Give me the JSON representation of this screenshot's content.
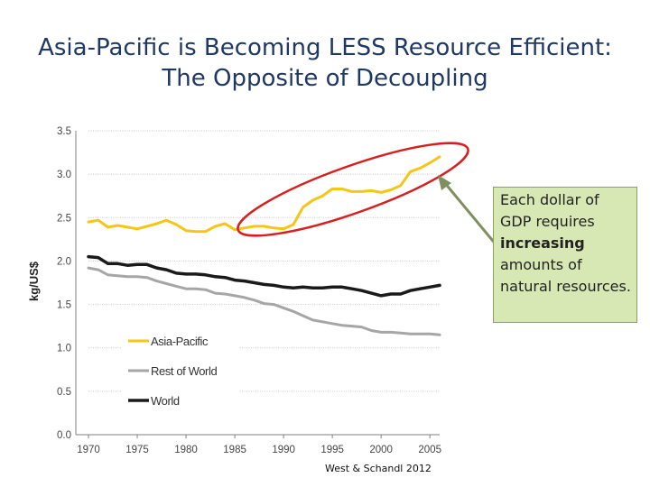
{
  "slide": {
    "title_line1": "Asia-Pacific is Becoming LESS Resource Efficient:",
    "title_line2": "The Opposite of Decoupling"
  },
  "callout": {
    "line1": "Each dollar of",
    "line2": "GDP requires",
    "line3": "increasing",
    "line4": "amounts of",
    "line5": "natural resources."
  },
  "source": "West & Schandl 2012",
  "colors": {
    "asia_pacific": "#f5c518",
    "rest_of_world": "#a6a6a6",
    "world": "#1a1a1a",
    "highlight_ellipse": "#d81e1e",
    "arrow": "#7f8f60",
    "callout_fill": "#d7e8b4"
  },
  "chart_data": {
    "type": "line",
    "title": "",
    "xlabel": "",
    "ylabel": "kg/US$",
    "xlim": [
      1970,
      2006
    ],
    "ylim": [
      0,
      3.5
    ],
    "grid": true,
    "legend_position": "bottom-left",
    "x_ticks": [
      "1970",
      "1975",
      "1980",
      "1985",
      "1990",
      "1995",
      "2000",
      "2005"
    ],
    "y_ticks": [
      "0.0",
      "0.5",
      "1.0",
      "1.5",
      "2.0",
      "2.5",
      "3.0",
      "3.5"
    ],
    "x": [
      1970,
      1971,
      1972,
      1973,
      1974,
      1975,
      1976,
      1977,
      1978,
      1979,
      1980,
      1981,
      1982,
      1983,
      1984,
      1985,
      1986,
      1987,
      1988,
      1989,
      1990,
      1991,
      1992,
      1993,
      1994,
      1995,
      1996,
      1997,
      1998,
      1999,
      2000,
      2001,
      2002,
      2003,
      2004,
      2005,
      2006
    ],
    "series": [
      {
        "name": "Asia-Pacific",
        "color_key": "asia_pacific",
        "values": [
          2.45,
          2.47,
          2.39,
          2.41,
          2.39,
          2.37,
          2.4,
          2.43,
          2.47,
          2.42,
          2.35,
          2.34,
          2.34,
          2.4,
          2.43,
          2.36,
          2.38,
          2.4,
          2.4,
          2.38,
          2.37,
          2.42,
          2.62,
          2.7,
          2.75,
          2.83,
          2.83,
          2.8,
          2.8,
          2.81,
          2.79,
          2.82,
          2.87,
          3.03,
          3.07,
          3.13,
          3.2
        ]
      },
      {
        "name": "Rest of World",
        "color_key": "rest_of_world",
        "values": [
          1.92,
          1.9,
          1.84,
          1.83,
          1.82,
          1.82,
          1.81,
          1.77,
          1.74,
          1.71,
          1.68,
          1.68,
          1.67,
          1.63,
          1.62,
          1.6,
          1.58,
          1.55,
          1.51,
          1.5,
          1.46,
          1.42,
          1.37,
          1.32,
          1.3,
          1.28,
          1.26,
          1.25,
          1.24,
          1.2,
          1.18,
          1.18,
          1.17,
          1.16,
          1.16,
          1.16,
          1.15
        ]
      },
      {
        "name": "World",
        "color_key": "world",
        "values": [
          2.05,
          2.04,
          1.97,
          1.97,
          1.95,
          1.96,
          1.96,
          1.92,
          1.9,
          1.86,
          1.85,
          1.85,
          1.84,
          1.82,
          1.81,
          1.78,
          1.77,
          1.75,
          1.73,
          1.72,
          1.7,
          1.69,
          1.7,
          1.69,
          1.69,
          1.7,
          1.7,
          1.68,
          1.66,
          1.63,
          1.6,
          1.62,
          1.62,
          1.66,
          1.68,
          1.7,
          1.72
        ]
      }
    ]
  }
}
